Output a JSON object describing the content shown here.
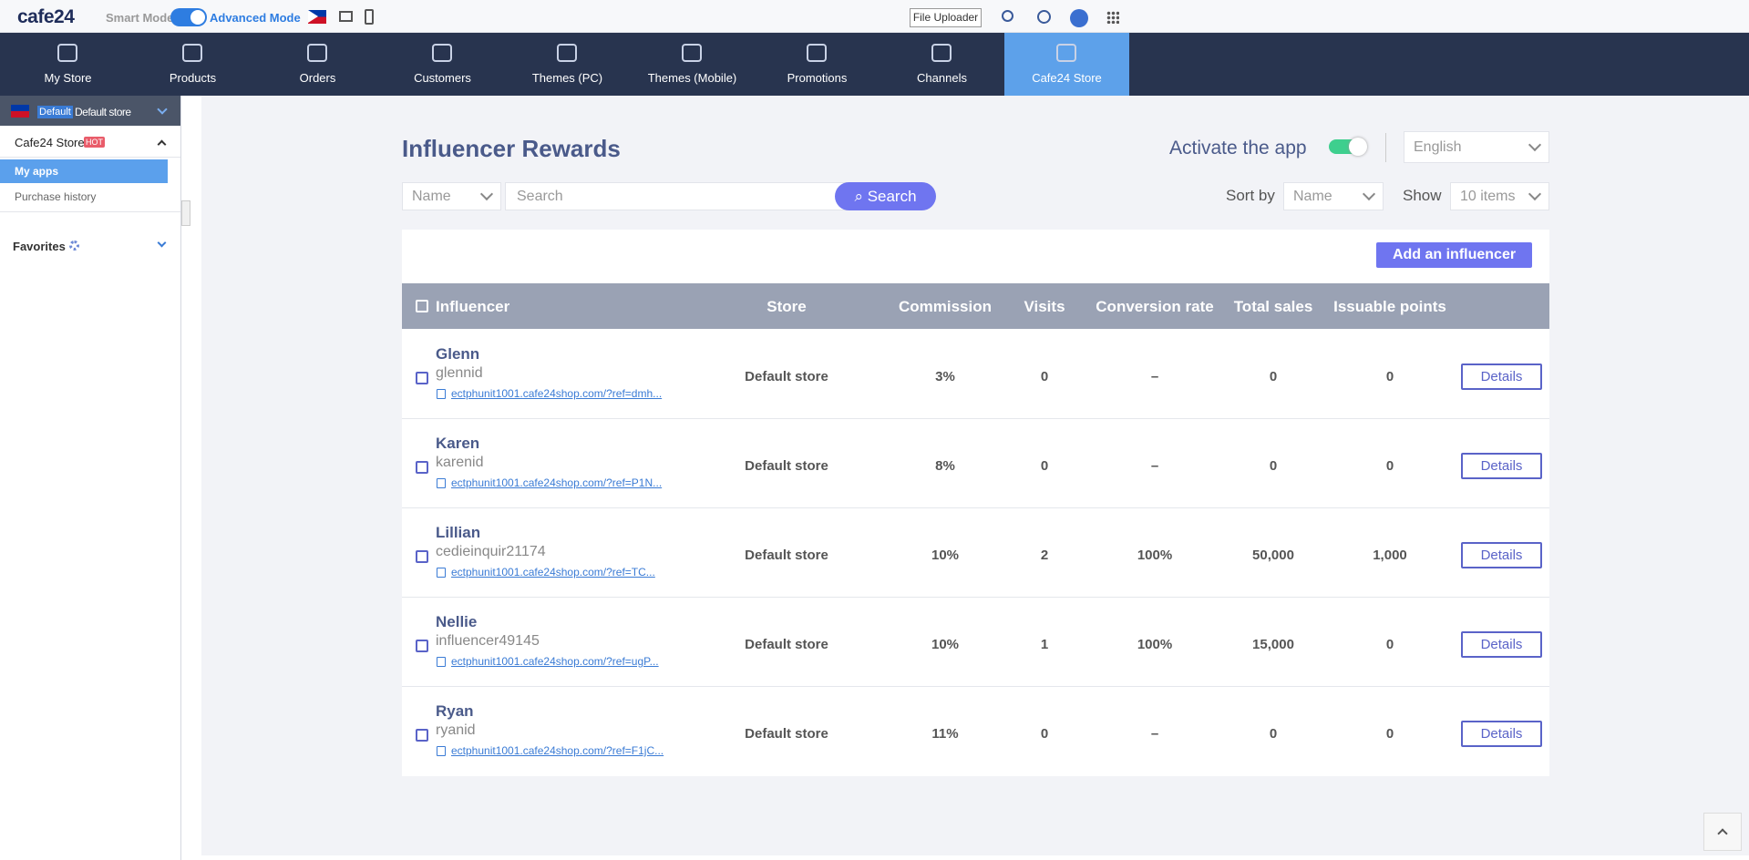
{
  "topbar": {
    "logo": "cafe24",
    "smart_mode": "Smart Mode",
    "advanced_mode": "Advanced Mode",
    "file_uploader": "File Uploader"
  },
  "nav": [
    "My Store",
    "Products",
    "Orders",
    "Customers",
    "Themes (PC)",
    "Themes (Mobile)",
    "Promotions",
    "Channels",
    "Cafe24 Store"
  ],
  "sidebar": {
    "badge": "Default",
    "store": "Default store",
    "section": "Cafe24 Store",
    "hot": "HOT",
    "items": [
      "My apps",
      "Purchase history"
    ],
    "favorites": "Favorites"
  },
  "page": {
    "title": "Influencer Rewards",
    "activate": "Activate the app",
    "language": "English",
    "filter": "Name",
    "search_placeholder": "Search",
    "search_button": "Search",
    "sort_by": "Sort by",
    "sort_value": "Name",
    "show": "Show",
    "show_value": "10 items",
    "add_button": "Add an influencer"
  },
  "table": {
    "columns": [
      "Influencer",
      "Store",
      "Commission",
      "Visits",
      "Conversion rate",
      "Total sales",
      "Issuable points"
    ],
    "rows": [
      {
        "name": "Glenn",
        "id": "glennid",
        "link": "ectphunit1001.cafe24shop.com/?ref=dmh...",
        "store": "Default store",
        "commission": "3%",
        "visits": "0",
        "conversion": "–",
        "total": "0",
        "points": "0",
        "action": "Details"
      },
      {
        "name": "Karen",
        "id": "karenid",
        "link": "ectphunit1001.cafe24shop.com/?ref=P1N...",
        "store": "Default store",
        "commission": "8%",
        "visits": "0",
        "conversion": "–",
        "total": "0",
        "points": "0",
        "action": "Details"
      },
      {
        "name": "Lillian",
        "id": "cedieinquir21174",
        "link": "ectphunit1001.cafe24shop.com/?ref=TC...",
        "store": "Default store",
        "commission": "10%",
        "visits": "2",
        "conversion": "100%",
        "total": "50,000",
        "points": "1,000",
        "action": "Details"
      },
      {
        "name": "Nellie",
        "id": "influencer49145",
        "link": "ectphunit1001.cafe24shop.com/?ref=ugP...",
        "store": "Default store",
        "commission": "10%",
        "visits": "1",
        "conversion": "100%",
        "total": "15,000",
        "points": "0",
        "action": "Details"
      },
      {
        "name": "Ryan",
        "id": "ryanid",
        "link": "ectphunit1001.cafe24shop.com/?ref=F1jC...",
        "store": "Default store",
        "commission": "11%",
        "visits": "0",
        "conversion": "–",
        "total": "0",
        "points": "0",
        "action": "Details"
      }
    ]
  }
}
